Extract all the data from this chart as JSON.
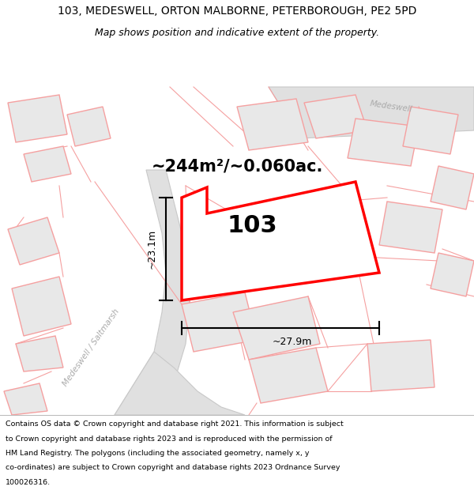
{
  "title_line1": "103, MEDESWELL, ORTON MALBORNE, PETERBOROUGH, PE2 5PD",
  "title_line2": "Map shows position and indicative extent of the property.",
  "footer_lines": [
    "Contains OS data © Crown copyright and database right 2021. This information is subject",
    "to Crown copyright and database rights 2023 and is reproduced with the permission of",
    "HM Land Registry. The polygons (including the associated geometry, namely x, y",
    "co-ordinates) are subject to Crown copyright and database rights 2023 Ordnance Survey",
    "100026316."
  ],
  "area_label": "~244m²/~0.060ac.",
  "plot_number": "103",
  "dim_width": "~27.9m",
  "dim_height": "~23.1m",
  "street_label1": "Medeswell / Saltmarsh",
  "street_label2": "Medeswell",
  "map_bg": "#ffffff",
  "plot_outline_color": "#ff0000",
  "neighbor_outline_color": "#f5a0a0",
  "neighbor_fill_color": "#e8e8e8",
  "road_fill_color": "#e0e0e0",
  "road_edge_color": "#c8c8c8",
  "dim_color": "#000000",
  "street_color": "#aaaaaa",
  "figsize": [
    6.0,
    6.25
  ],
  "dpi": 100,
  "title_fontsize": 10,
  "subtitle_fontsize": 9,
  "area_fontsize": 15,
  "plot_num_fontsize": 22,
  "dim_fontsize": 9,
  "footer_fontsize": 6.8,
  "street_fontsize": 7.5
}
